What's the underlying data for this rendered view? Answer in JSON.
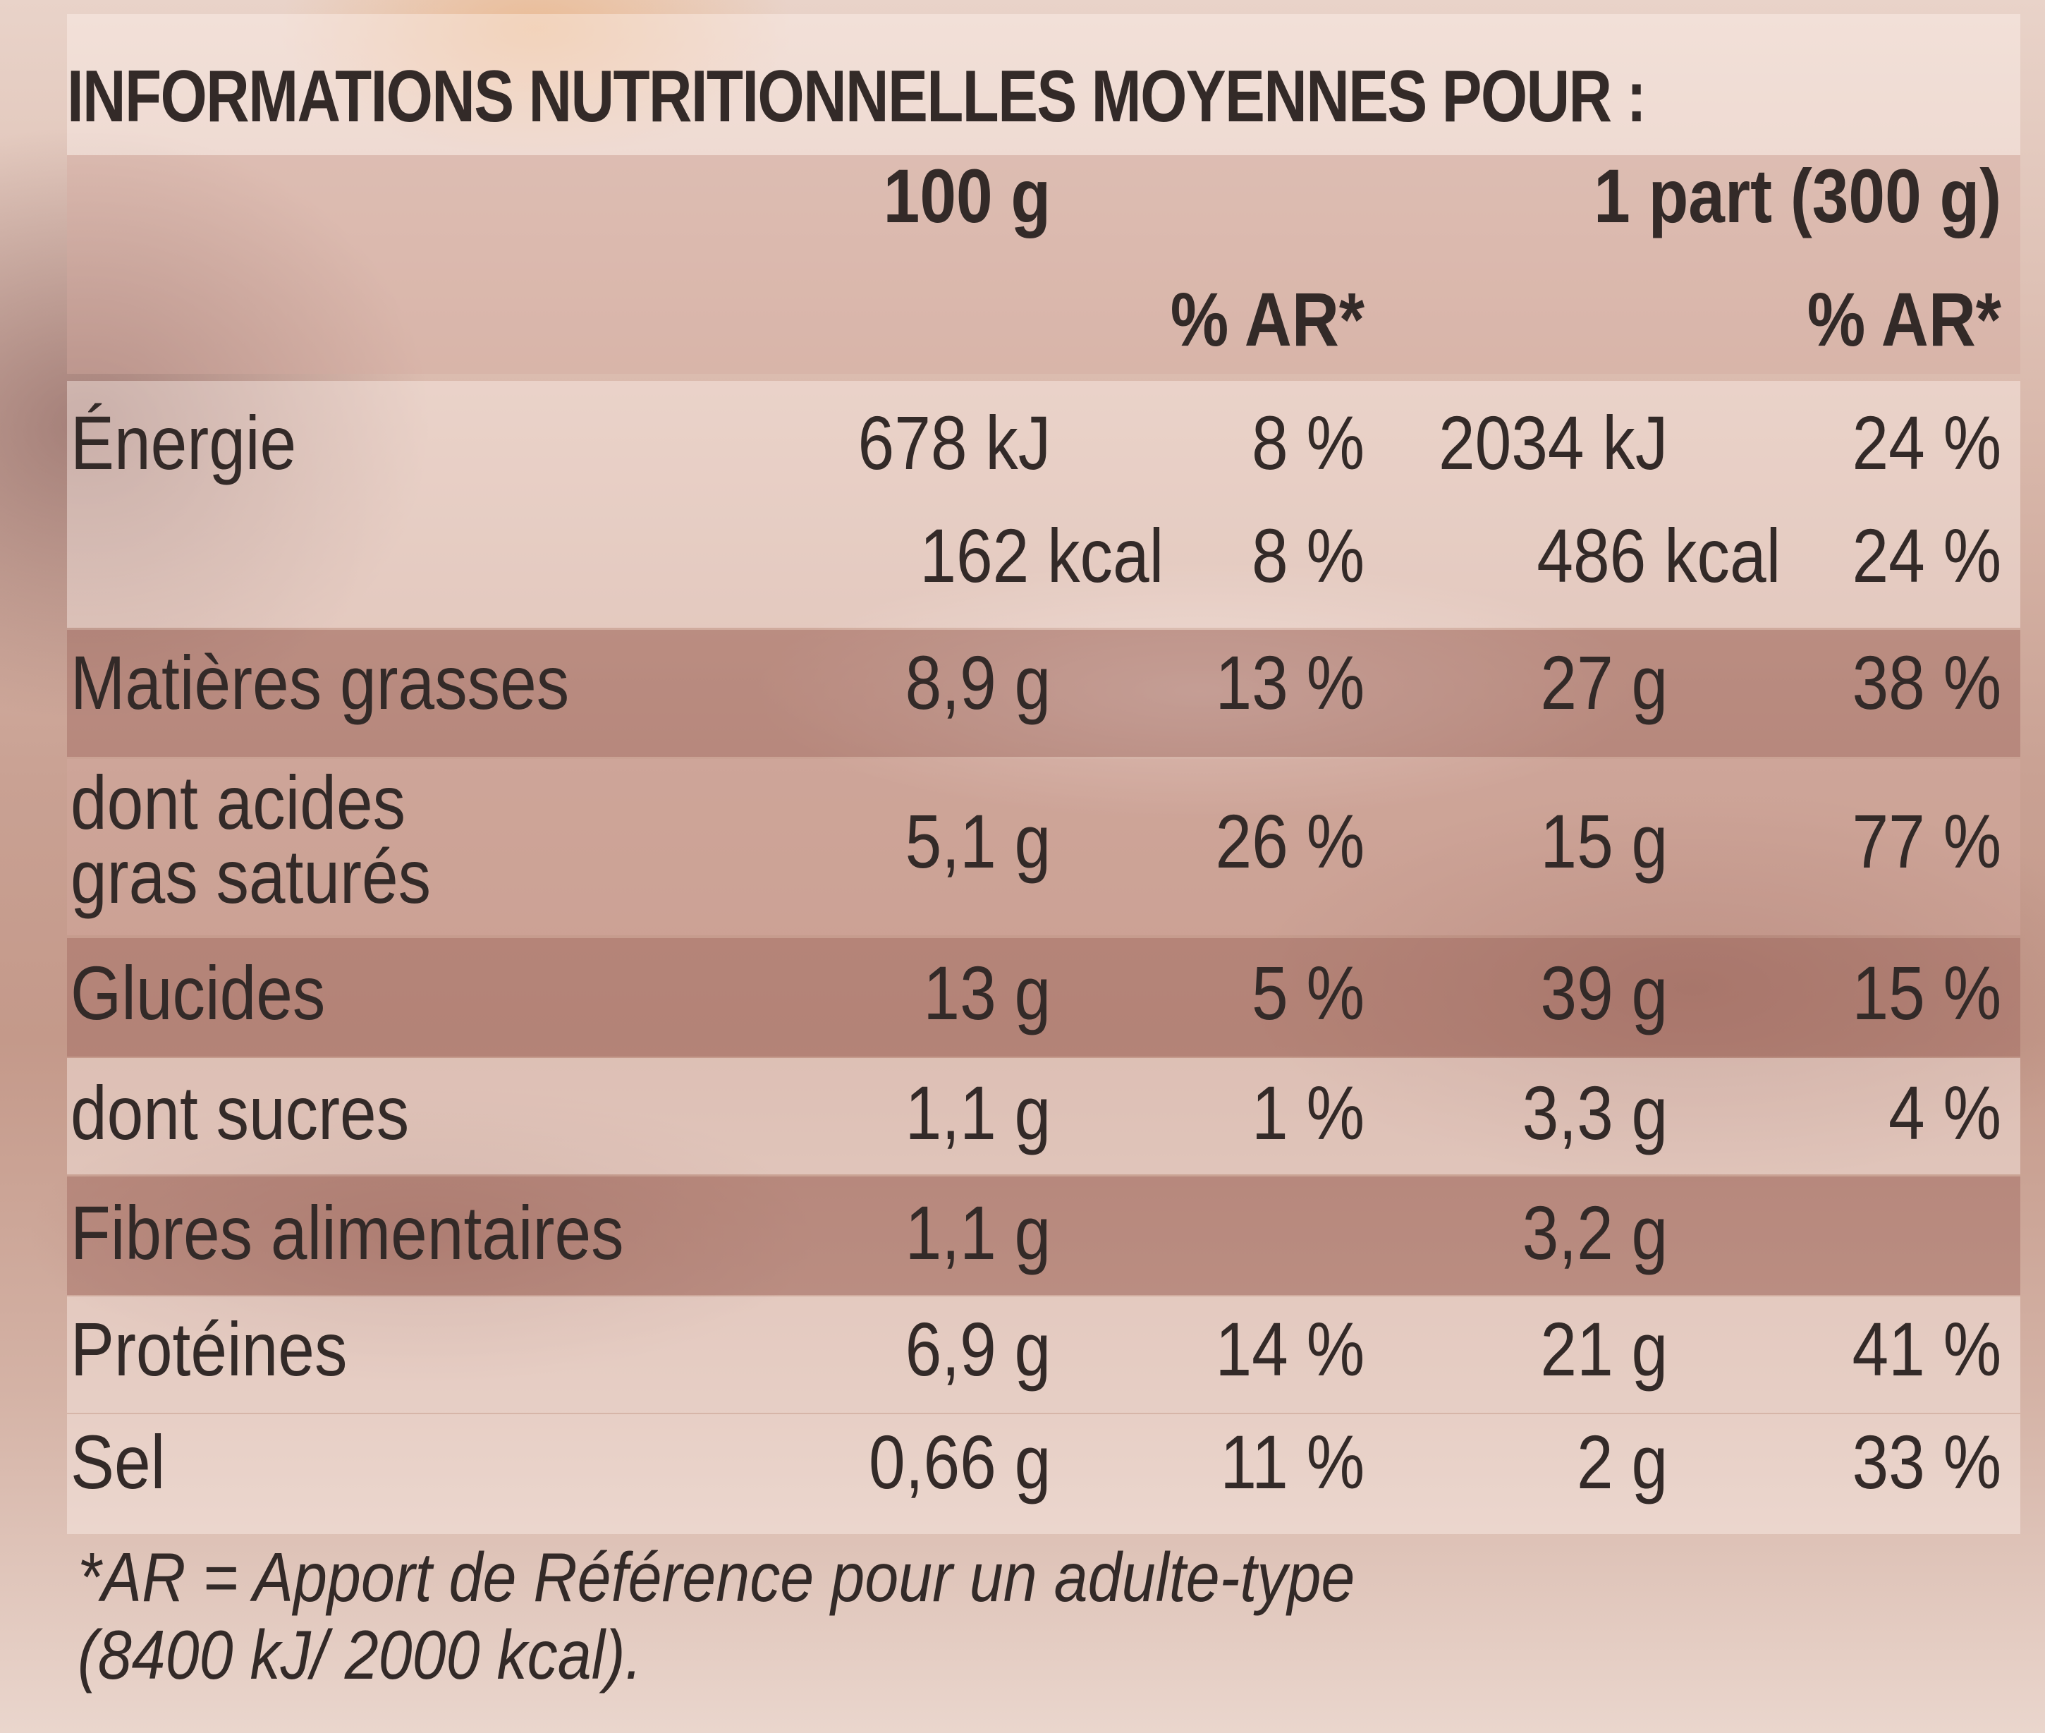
{
  "title": "INFORMATIONS NUTRITIONNELLES MOYENNES POUR :",
  "columns": {
    "per100": "100 g",
    "perPortion": "1 part (300 g)",
    "ar1": "% AR*",
    "ar2": "% AR*"
  },
  "rows": [
    {
      "label": "Énergie",
      "v100": "678 kJ",
      "ar100": "8 %",
      "vPart": "2034 kJ",
      "arPart": "24 %"
    },
    {
      "label": "",
      "v100": "162 kcal",
      "ar100": "8 %",
      "vPart": "486 kcal",
      "arPart": "24 %"
    },
    {
      "label": "Matières grasses",
      "v100": "8,9 g",
      "ar100": "13 %",
      "vPart": "27 g",
      "arPart": "38 %"
    },
    {
      "label": "dont acides",
      "label2": "gras saturés",
      "v100": "5,1 g",
      "ar100": "26 %",
      "vPart": "15 g",
      "arPart": "77 %"
    },
    {
      "label": "Glucides",
      "v100": "13 g",
      "ar100": "5 %",
      "vPart": "39 g",
      "arPart": "15 %"
    },
    {
      "label": "dont sucres",
      "v100": "1,1 g",
      "ar100": "1 %",
      "vPart": "3,3 g",
      "arPart": "4 %"
    },
    {
      "label": "Fibres alimentaires",
      "v100": "1,1 g",
      "ar100": "",
      "vPart": "3,2 g",
      "arPart": ""
    },
    {
      "label": "Protéines",
      "v100": "6,9 g",
      "ar100": "14 %",
      "vPart": "21 g",
      "arPart": "41 %"
    },
    {
      "label": "Sel",
      "v100": "0,66 g",
      "ar100": "11 %",
      "vPart": "2 g",
      "arPart": "33 %"
    }
  ],
  "footnote": {
    "line1": "*AR = Apport de Référence pour un adulte-type",
    "line2": "(8400 kJ/ 2000 kcal)."
  }
}
